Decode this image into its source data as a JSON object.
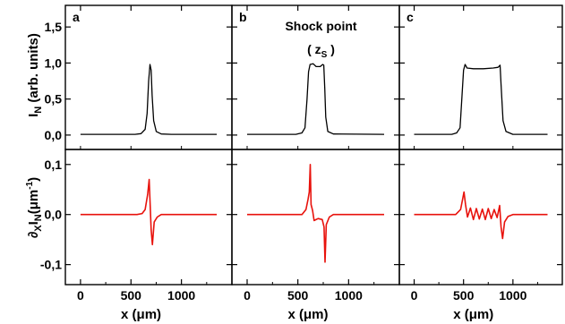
{
  "chart_data": {
    "type": "line",
    "xlabel": "x (μm)",
    "ylabel_top": "I_N (arb. units)",
    "ylabel_bottom": "∂_x I_N (μm⁻¹)",
    "xlim": [
      -150,
      1500
    ],
    "ylim_top": [
      -0.2,
      1.8
    ],
    "ylim_bottom": [
      -0.14,
      0.13
    ],
    "x_ticks": [
      0,
      500,
      1000
    ],
    "x_tick_labels": [
      "0",
      "500",
      "1000"
    ],
    "y_ticks_top": [
      0.0,
      0.5,
      1.0,
      1.5
    ],
    "y_tick_labels_top": [
      "0,0",
      "0,5",
      "1,0",
      "1,5"
    ],
    "y_ticks_bottom": [
      -0.1,
      0.0,
      0.1
    ],
    "y_tick_labels_bottom": [
      "-0,1",
      "0,0",
      "0,1"
    ],
    "colors": {
      "intensity": "#000000",
      "derivative": "#e8120c"
    },
    "panels": [
      {
        "letter": "a",
        "annotation": null,
        "intensity": [
          [
            0,
            0.01
          ],
          [
            540,
            0.01
          ],
          [
            600,
            0.02
          ],
          [
            640,
            0.08
          ],
          [
            660,
            0.3
          ],
          [
            675,
            0.75
          ],
          [
            688,
            0.98
          ],
          [
            700,
            0.9
          ],
          [
            710,
            0.55
          ],
          [
            725,
            0.2
          ],
          [
            750,
            0.05
          ],
          [
            800,
            0.015
          ],
          [
            900,
            0.01
          ],
          [
            1350,
            0.01
          ]
        ],
        "derivative": [
          [
            0,
            0.0
          ],
          [
            560,
            0.0
          ],
          [
            610,
            0.002
          ],
          [
            640,
            0.01
          ],
          [
            665,
            0.04
          ],
          [
            680,
            0.07
          ],
          [
            690,
            0.02
          ],
          [
            700,
            -0.03
          ],
          [
            712,
            -0.06
          ],
          [
            730,
            -0.015
          ],
          [
            760,
            -0.005
          ],
          [
            800,
            0.0
          ],
          [
            1350,
            0.0
          ]
        ]
      },
      {
        "letter": "b",
        "annotation": {
          "title": "Shock point",
          "label": "( z",
          "sub": "S",
          "close": " )"
        },
        "intensity": [
          [
            0,
            0.01
          ],
          [
            480,
            0.01
          ],
          [
            540,
            0.03
          ],
          [
            570,
            0.1
          ],
          [
            590,
            0.5
          ],
          [
            605,
            0.88
          ],
          [
            620,
            0.98
          ],
          [
            650,
            0.99
          ],
          [
            680,
            0.95
          ],
          [
            720,
            0.95
          ],
          [
            745,
            0.98
          ],
          [
            755,
            0.97
          ],
          [
            765,
            0.65
          ],
          [
            775,
            0.25
          ],
          [
            795,
            0.05
          ],
          [
            850,
            0.015
          ],
          [
            1350,
            0.01
          ]
        ],
        "derivative": [
          [
            0,
            0.0
          ],
          [
            540,
            0.0
          ],
          [
            580,
            0.01
          ],
          [
            600,
            0.03
          ],
          [
            612,
            0.045
          ],
          [
            622,
            0.1
          ],
          [
            630,
            0.02
          ],
          [
            645,
            0.008
          ],
          [
            660,
            -0.012
          ],
          [
            700,
            -0.008
          ],
          [
            740,
            -0.01
          ],
          [
            758,
            -0.025
          ],
          [
            768,
            -0.095
          ],
          [
            780,
            -0.02
          ],
          [
            810,
            -0.005
          ],
          [
            850,
            0.0
          ],
          [
            1350,
            0.0
          ]
        ]
      },
      {
        "letter": "c",
        "annotation": null,
        "intensity": [
          [
            0,
            0.01
          ],
          [
            380,
            0.01
          ],
          [
            430,
            0.03
          ],
          [
            465,
            0.1
          ],
          [
            485,
            0.55
          ],
          [
            500,
            0.9
          ],
          [
            515,
            0.98
          ],
          [
            535,
            0.93
          ],
          [
            600,
            0.92
          ],
          [
            700,
            0.92
          ],
          [
            800,
            0.93
          ],
          [
            850,
            0.94
          ],
          [
            870,
            0.97
          ],
          [
            880,
            0.7
          ],
          [
            900,
            0.2
          ],
          [
            930,
            0.05
          ],
          [
            1000,
            0.01
          ],
          [
            1350,
            0.01
          ]
        ],
        "derivative": [
          [
            0,
            0.0
          ],
          [
            420,
            0.0
          ],
          [
            470,
            0.01
          ],
          [
            490,
            0.03
          ],
          [
            505,
            0.045
          ],
          [
            520,
            0.02
          ],
          [
            540,
            -0.005
          ],
          [
            570,
            0.013
          ],
          [
            600,
            -0.01
          ],
          [
            630,
            0.012
          ],
          [
            660,
            -0.009
          ],
          [
            690,
            0.011
          ],
          [
            720,
            -0.01
          ],
          [
            750,
            0.012
          ],
          [
            780,
            -0.008
          ],
          [
            810,
            0.01
          ],
          [
            840,
            -0.006
          ],
          [
            865,
            0.018
          ],
          [
            880,
            -0.025
          ],
          [
            895,
            -0.048
          ],
          [
            915,
            -0.015
          ],
          [
            950,
            -0.004
          ],
          [
            1000,
            0.0
          ],
          [
            1350,
            0.0
          ]
        ]
      }
    ]
  }
}
